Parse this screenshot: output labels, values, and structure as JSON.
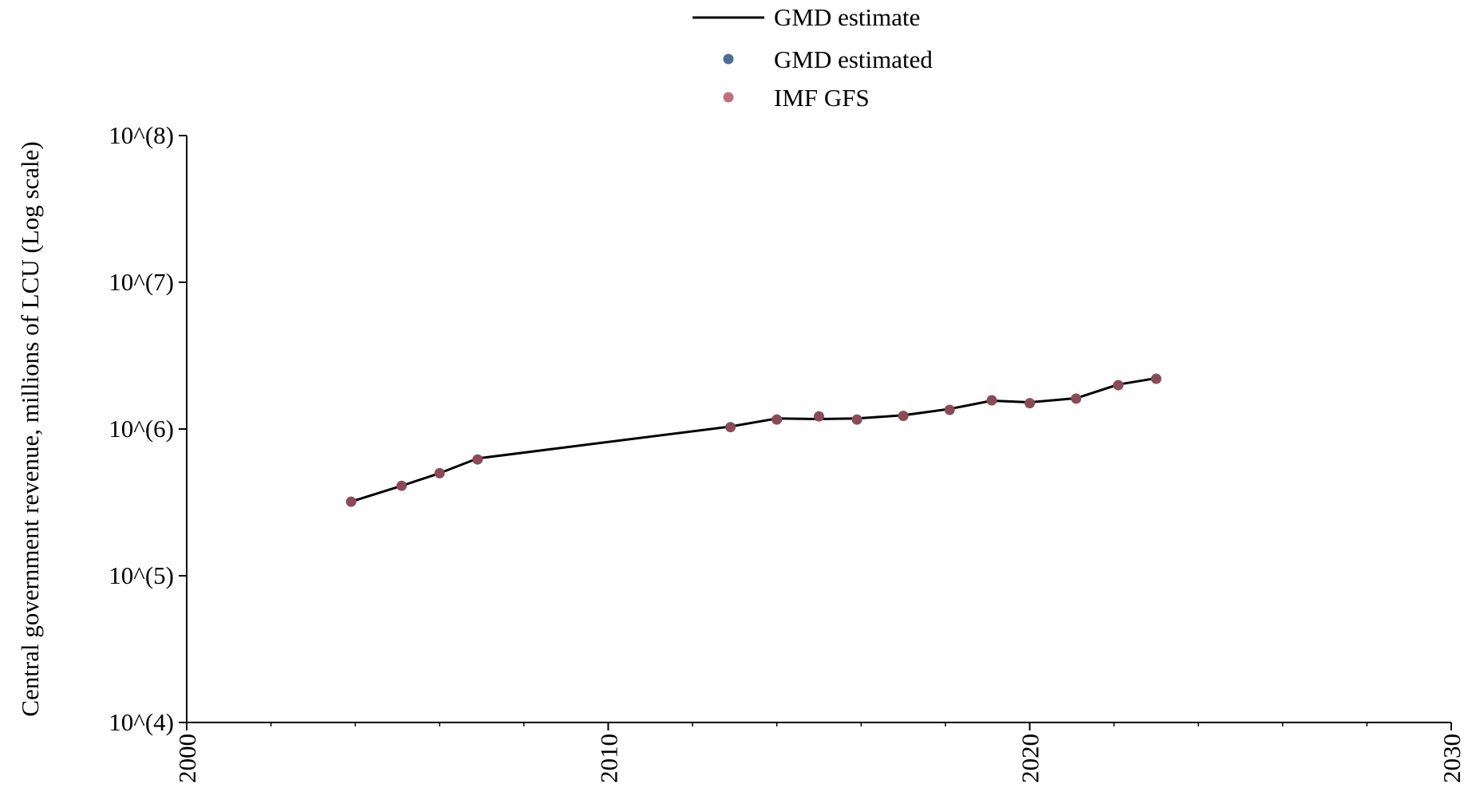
{
  "chart_data": {
    "type": "line",
    "title": "",
    "xlabel": "",
    "ylabel": "Central government revenue, millions of LCU (Log scale)",
    "xlim": [
      2000,
      2030
    ],
    "ylim": [
      10000,
      100000000
    ],
    "yscale": "log",
    "grid": false,
    "legend_position": "top-center",
    "x_ticks": [
      "2000",
      "2010",
      "2020",
      "2030"
    ],
    "y_ticks": [
      "10^(4)",
      "10^(5)",
      "10^(6)",
      "10^(7)",
      "10^(8)"
    ],
    "legend": [
      {
        "label": "GMD estimate",
        "kind": "line",
        "color": "#000000"
      },
      {
        "label": "GMD estimated",
        "kind": "marker",
        "color": "#4e6f94"
      },
      {
        "label": "IMF GFS",
        "kind": "marker",
        "color": "#c0707a"
      }
    ],
    "series": [
      {
        "name": "GMD estimate",
        "kind": "line",
        "color": "#000000",
        "x": [
          2003.9,
          2005.1,
          2006.0,
          2006.9,
          2012.9,
          2014.0,
          2015.0,
          2015.9,
          2017.0,
          2018.1,
          2019.1,
          2020.0,
          2021.1,
          2022.1,
          2023.0
        ],
        "y": [
          320000,
          410000,
          500000,
          630000,
          1040000,
          1180000,
          1170000,
          1180000,
          1240000,
          1370000,
          1560000,
          1520000,
          1620000,
          2010000,
          2220000
        ]
      },
      {
        "name": "IMF GFS",
        "kind": "marker",
        "color": "#8b4a57",
        "x": [
          2003.9,
          2005.1,
          2006.0,
          2006.9,
          2012.9,
          2014.0,
          2015.0,
          2015.9,
          2017.0,
          2018.1,
          2019.1,
          2020.0,
          2021.1,
          2022.1,
          2023.0
        ],
        "y": [
          320000,
          410000,
          500000,
          620000,
          1030000,
          1160000,
          1220000,
          1160000,
          1230000,
          1350000,
          1570000,
          1500000,
          1610000,
          1990000,
          2200000
        ]
      }
    ]
  }
}
